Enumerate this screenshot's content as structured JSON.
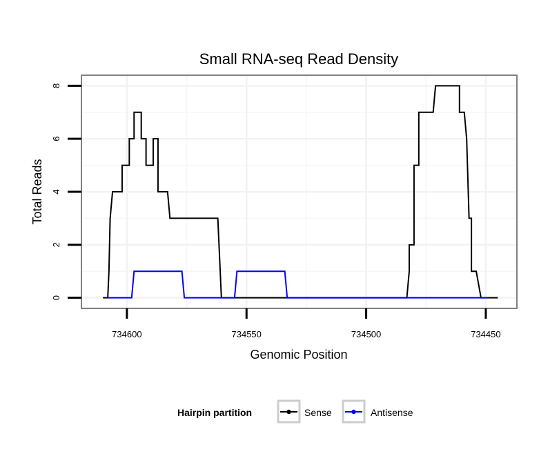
{
  "chart_data": {
    "type": "line",
    "title": "Small RNA-seq Read Density",
    "xlabel": "Genomic Position",
    "ylabel": "Total Reads",
    "x_reversed": true,
    "xlim": [
      734619,
      734437
    ],
    "ylim": [
      -0.4,
      8.4
    ],
    "x_ticks": [
      734600,
      734550,
      734500,
      734450
    ],
    "x_tick_labels": [
      "734600",
      "734550",
      "734500",
      "734450"
    ],
    "y_ticks": [
      0,
      2,
      4,
      6,
      8
    ],
    "y_tick_labels": [
      "0",
      "2",
      "4",
      "6",
      "8"
    ],
    "grid": true,
    "legend": {
      "title": "Hairpin partition",
      "position": "bottom",
      "entries": [
        {
          "label": "Sense",
          "color": "#000000"
        },
        {
          "label": "Antisense",
          "color": "#0000ff"
        }
      ]
    },
    "series": [
      {
        "name": "Sense",
        "color": "#000000",
        "x": [
          734610,
          734608,
          734607.5,
          734607,
          734606,
          734604,
          734602,
          734602,
          734599,
          734599,
          734597,
          734597,
          734594,
          734594,
          734592,
          734592,
          734589,
          734589,
          734587,
          734587,
          734585,
          734585,
          734584,
          734584,
          734583,
          734582,
          734582,
          734578,
          734578,
          734574,
          734574,
          734570,
          734570,
          734566,
          734566,
          734562,
          734561,
          734560.5,
          734560,
          734484,
          734483,
          734482,
          734482,
          734480,
          734480,
          734478,
          734478,
          734474,
          734474,
          734472,
          734471,
          734461,
          734461,
          734459,
          734458,
          734457,
          734456,
          734456,
          734454,
          734454,
          734452,
          734449,
          734445
        ],
        "y": [
          0,
          0,
          1,
          3,
          4,
          4,
          4,
          5,
          5,
          6,
          6,
          7,
          7,
          6,
          6,
          5,
          5,
          6,
          6,
          4,
          4,
          4,
          4,
          4,
          4,
          3,
          3,
          3,
          3,
          3,
          3,
          3,
          3,
          3,
          3,
          3,
          1,
          0,
          0,
          0,
          0,
          1,
          2,
          2,
          5,
          5,
          7,
          7,
          7,
          7,
          8,
          8,
          7,
          7,
          6,
          3,
          3,
          1,
          1,
          1,
          0,
          0,
          0
        ]
      },
      {
        "name": "Antisense",
        "color": "#0000ff",
        "x": [
          734608,
          734598,
          734597,
          734577,
          734576,
          734555,
          734554,
          734534,
          734533,
          734484,
          734483,
          734449
        ],
        "y": [
          0,
          0,
          1,
          1,
          0,
          0,
          1,
          1,
          0,
          0,
          0,
          0
        ]
      }
    ]
  }
}
